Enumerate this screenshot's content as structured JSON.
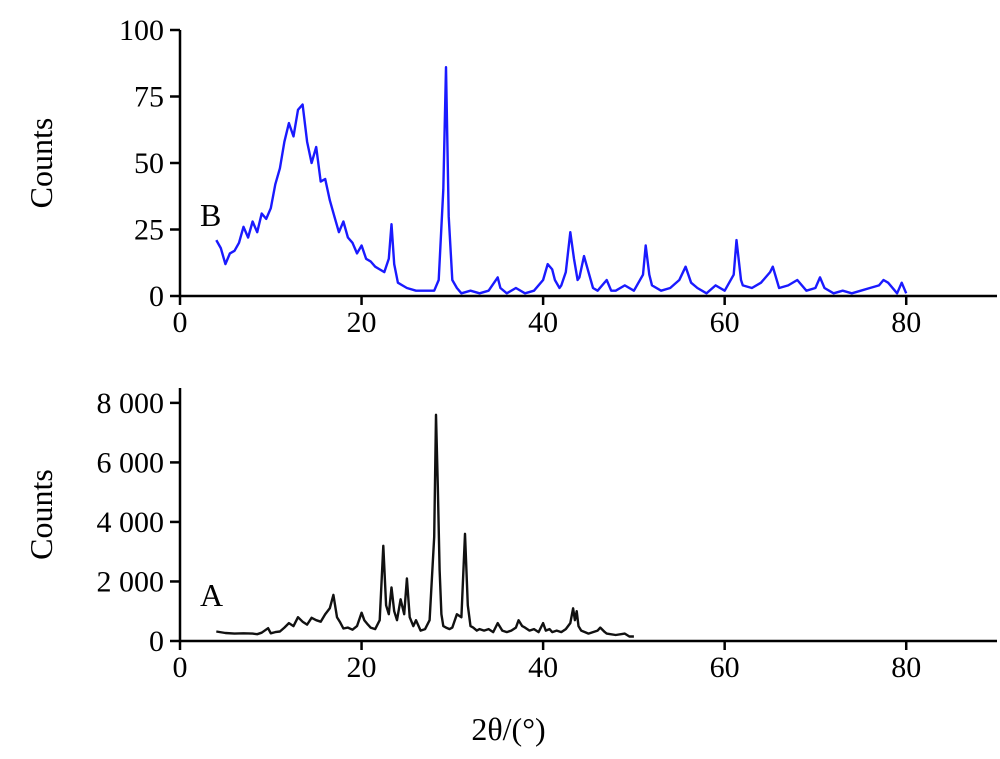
{
  "chart_data": [
    {
      "type": "line",
      "panel_label": "B",
      "ylabel": "Counts",
      "xlabel": "",
      "xlim": [
        0,
        90
      ],
      "ylim": [
        0,
        100
      ],
      "x_ticks": [
        "0",
        "20",
        "40",
        "60",
        "80"
      ],
      "y_ticks": [
        "0",
        "25",
        "50",
        "75",
        "100"
      ],
      "grid": false,
      "colors": {
        "line": "#1a1aff",
        "axis": "#000000"
      },
      "series": [
        {
          "x": [
            4,
            4.5,
            5,
            5.5,
            6,
            6.5,
            7,
            7.5,
            8,
            8.5,
            9,
            9.5,
            10,
            10.5,
            11,
            11.5,
            12,
            12.5,
            13,
            13.5,
            14,
            14.5,
            15,
            15.5,
            16,
            16.5,
            17,
            17.5,
            18,
            18.5,
            19,
            19.5,
            20,
            20.5,
            21,
            21.5,
            22,
            22.5,
            23,
            23.3,
            23.6,
            24,
            24.5,
            25,
            26,
            27,
            28,
            28.5,
            29,
            29.3,
            29.6,
            30,
            30.5,
            31,
            32,
            33,
            34,
            35,
            35.3,
            36,
            37,
            38,
            39,
            40,
            40.5,
            41,
            41.3,
            41.8,
            42,
            42.5,
            43,
            43.4,
            43.8,
            44,
            44.5,
            45,
            45.5,
            46,
            47,
            47.5,
            48,
            49,
            50,
            51,
            51.3,
            51.7,
            52,
            53,
            54,
            55,
            55.7,
            56.3,
            57,
            58,
            59,
            60,
            61,
            61.3,
            61.8,
            62,
            63,
            64,
            65,
            65.3,
            66,
            67,
            68,
            69,
            70,
            70.5,
            71,
            72,
            73,
            74,
            75,
            76,
            77,
            77.5,
            78,
            79,
            79.5,
            80
          ],
          "y": [
            21,
            18,
            12,
            16,
            17,
            20,
            26,
            22,
            28,
            24,
            31,
            29,
            33,
            42,
            48,
            58,
            65,
            60,
            70,
            72,
            58,
            50,
            56,
            43,
            44,
            36,
            30,
            24,
            28,
            22,
            20,
            16,
            19,
            14,
            13,
            11,
            10,
            9,
            14,
            27,
            12,
            5,
            4,
            3,
            2,
            2,
            2,
            6,
            40,
            86,
            30,
            6,
            3,
            1,
            2,
            1,
            2,
            7,
            3,
            1,
            3,
            1,
            2,
            6,
            12,
            10,
            6,
            3,
            4,
            9,
            24,
            14,
            6,
            7,
            15,
            9,
            3,
            2,
            6,
            2,
            2,
            4,
            2,
            8,
            19,
            8,
            4,
            2,
            3,
            6,
            11,
            5,
            3,
            1,
            4,
            2,
            8,
            21,
            6,
            4,
            3,
            5,
            9,
            11,
            3,
            4,
            6,
            2,
            3,
            7,
            3,
            1,
            2,
            1,
            2,
            3,
            4,
            6,
            5,
            1,
            5,
            1
          ]
        }
      ]
    },
    {
      "type": "line",
      "panel_label": "A",
      "ylabel": "Counts",
      "xlabel": "2θ/(°)",
      "xlim": [
        0,
        90
      ],
      "ylim": [
        0,
        8500
      ],
      "x_ticks": [
        "0",
        "20",
        "40",
        "60",
        "80"
      ],
      "y_ticks": [
        "0",
        "2 000",
        "4 000",
        "6 000",
        "8 000"
      ],
      "grid": false,
      "colors": {
        "line": "#111111",
        "axis": "#000000"
      },
      "series": [
        {
          "x": [
            4,
            5,
            6,
            7,
            8,
            8.5,
            9,
            9.7,
            10,
            10.5,
            11,
            11.5,
            12,
            12.5,
            13,
            13.5,
            14,
            14.5,
            15,
            15.5,
            16,
            16.5,
            16.9,
            17.3,
            17.6,
            18,
            18.5,
            19,
            19.5,
            20,
            20.3,
            20.7,
            21,
            21.5,
            22,
            22.4,
            22.7,
            23,
            23.3,
            23.6,
            23.9,
            24.3,
            24.7,
            25,
            25.3,
            25.7,
            26,
            26.5,
            27,
            27.5,
            28,
            28.2,
            28.4,
            28.6,
            28.8,
            29,
            29.3,
            29.7,
            30,
            30.5,
            31,
            31.4,
            31.7,
            32,
            32.3,
            32.7,
            33,
            33.5,
            34,
            34.5,
            35,
            35.5,
            36,
            36.5,
            37,
            37.3,
            37.7,
            38,
            38.5,
            39,
            39.5,
            40,
            40.3,
            40.7,
            41,
            41.5,
            42,
            42.5,
            43,
            43.3,
            43.5,
            43.7,
            43.9,
            44.2,
            44.6,
            45,
            45.5,
            46,
            46.3,
            46.8,
            47,
            48,
            49,
            49.5,
            50
          ],
          "y": [
            320,
            270,
            250,
            260,
            250,
            230,
            280,
            430,
            260,
            300,
            320,
            450,
            600,
            500,
            800,
            650,
            550,
            780,
            700,
            650,
            900,
            1100,
            1550,
            800,
            650,
            420,
            450,
            380,
            500,
            950,
            700,
            550,
            450,
            400,
            700,
            3200,
            1200,
            900,
            1800,
            1000,
            700,
            1400,
            900,
            2100,
            800,
            500,
            700,
            350,
            400,
            700,
            3500,
            7600,
            5200,
            2400,
            900,
            500,
            450,
            400,
            450,
            900,
            800,
            3600,
            1200,
            500,
            450,
            350,
            400,
            350,
            400,
            300,
            600,
            350,
            300,
            350,
            450,
            700,
            500,
            450,
            350,
            400,
            300,
            600,
            350,
            400,
            300,
            350,
            300,
            400,
            600,
            1100,
            700,
            1000,
            500,
            350,
            300,
            250,
            300,
            350,
            450,
            300,
            250,
            200,
            250,
            150,
            150
          ]
        }
      ]
    }
  ]
}
